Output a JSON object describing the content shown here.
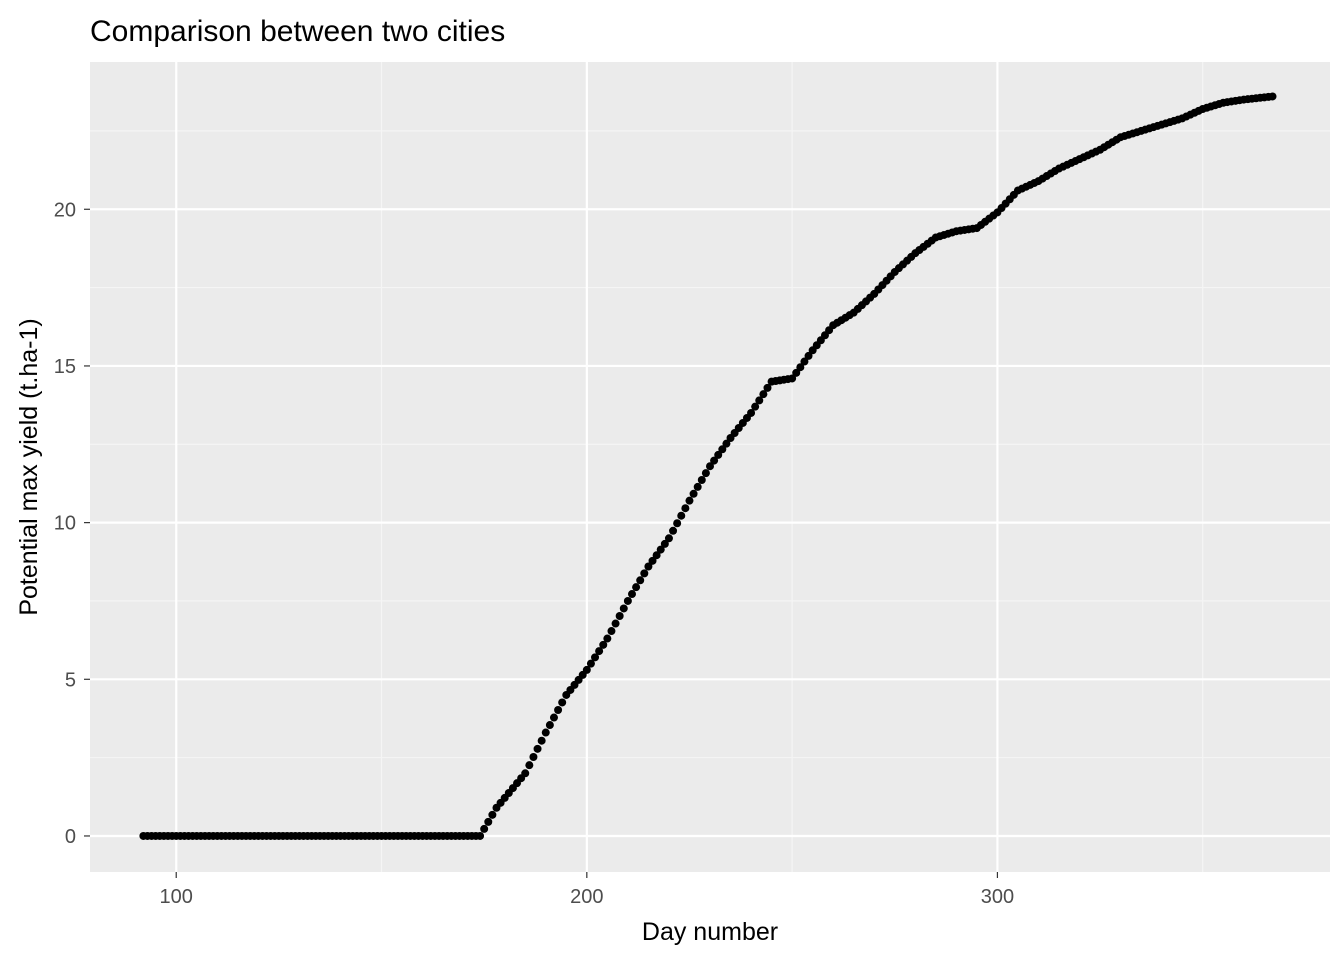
{
  "chart_data": {
    "type": "scatter",
    "title": "Comparison between two cities",
    "xlabel": "Day number",
    "ylabel": "Potential max yield (t.ha-1)",
    "xlim": [
      79,
      381
    ],
    "ylim": [
      -1.15,
      24.7
    ],
    "x_ticks": [
      100,
      200,
      300
    ],
    "x_minor_ticks": [
      150,
      250,
      350
    ],
    "y_ticks": [
      0,
      5,
      10,
      15,
      20
    ],
    "y_minor_ticks": [
      2.5,
      7.5,
      12.5,
      17.5,
      22.5
    ],
    "x_tick_labels": [
      "100",
      "200",
      "300"
    ],
    "y_tick_labels": [
      "0",
      "5",
      "10",
      "15",
      "20"
    ],
    "grid": true,
    "legend": "none",
    "colors": {
      "panel_background": "#ebebeb",
      "grid_major": "#ffffff",
      "grid_minor": "#f5f5f5",
      "points": "#000000",
      "tick_labels": "#4d4d4d"
    },
    "x_range": [
      92,
      367
    ],
    "series_anchors": {
      "x": [
        92,
        174,
        178,
        185,
        190,
        195,
        200,
        205,
        210,
        215,
        220,
        225,
        230,
        235,
        240,
        245,
        250,
        255,
        260,
        265,
        270,
        275,
        280,
        285,
        290,
        295,
        300,
        305,
        310,
        315,
        320,
        325,
        330,
        335,
        340,
        345,
        350,
        355,
        360,
        367
      ],
      "y": [
        0,
        0,
        0.9,
        2.0,
        3.3,
        4.5,
        5.3,
        6.3,
        7.5,
        8.6,
        9.5,
        10.7,
        11.8,
        12.7,
        13.5,
        14.5,
        14.6,
        15.5,
        16.3,
        16.7,
        17.3,
        18.0,
        18.6,
        19.1,
        19.3,
        19.4,
        19.9,
        20.6,
        20.9,
        21.3,
        21.6,
        21.9,
        22.3,
        22.5,
        22.7,
        22.9,
        23.2,
        23.4,
        23.5,
        23.6
      ]
    }
  }
}
